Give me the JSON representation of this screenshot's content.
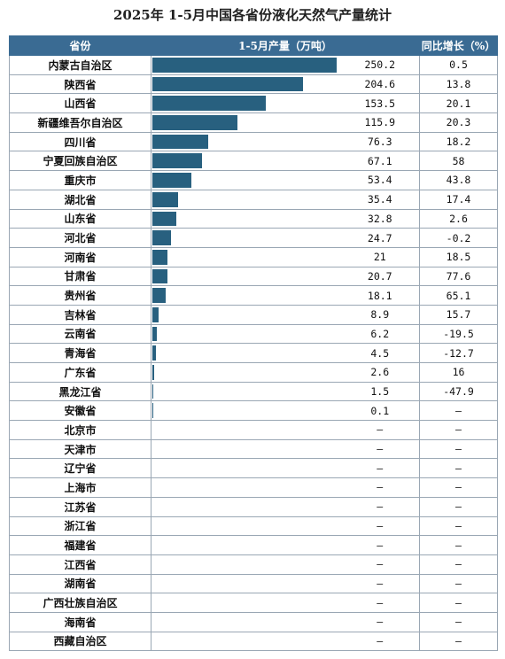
{
  "title": "2025年 1-5月中国各省份液化天然气产量统计",
  "headers": {
    "province": "省份",
    "production": "1-5月产量（万吨）",
    "growth": "同比增长（%）"
  },
  "colors": {
    "header_bg": "#3a6b93",
    "bar": "#28607f",
    "grid": "#9aa7b4"
  },
  "chart_data": {
    "type": "table",
    "bar_max": 250.2,
    "rows": [
      {
        "province": "内蒙古自治区",
        "production": 250.2,
        "production_label": "250.2",
        "growth": "0.5"
      },
      {
        "province": "陕西省",
        "production": 204.6,
        "production_label": "204.6",
        "growth": "13.8"
      },
      {
        "province": "山西省",
        "production": 153.5,
        "production_label": "153.5",
        "growth": "20.1"
      },
      {
        "province": "新疆维吾尔自治区",
        "production": 115.9,
        "production_label": "115.9",
        "growth": "20.3"
      },
      {
        "province": "四川省",
        "production": 76.3,
        "production_label": "76.3",
        "growth": "18.2"
      },
      {
        "province": "宁夏回族自治区",
        "production": 67.1,
        "production_label": "67.1",
        "growth": "58"
      },
      {
        "province": "重庆市",
        "production": 53.4,
        "production_label": "53.4",
        "growth": "43.8"
      },
      {
        "province": "湖北省",
        "production": 35.4,
        "production_label": "35.4",
        "growth": "17.4"
      },
      {
        "province": "山东省",
        "production": 32.8,
        "production_label": "32.8",
        "growth": "2.6"
      },
      {
        "province": "河北省",
        "production": 24.7,
        "production_label": "24.7",
        "growth": "-0.2"
      },
      {
        "province": "河南省",
        "production": 21,
        "production_label": "21",
        "growth": "18.5"
      },
      {
        "province": "甘肃省",
        "production": 20.7,
        "production_label": "20.7",
        "growth": "77.6"
      },
      {
        "province": "贵州省",
        "production": 18.1,
        "production_label": "18.1",
        "growth": "65.1"
      },
      {
        "province": "吉林省",
        "production": 8.9,
        "production_label": "8.9",
        "growth": "15.7"
      },
      {
        "province": "云南省",
        "production": 6.2,
        "production_label": "6.2",
        "growth": "-19.5"
      },
      {
        "province": "青海省",
        "production": 4.5,
        "production_label": "4.5",
        "growth": "-12.7"
      },
      {
        "province": "广东省",
        "production": 2.6,
        "production_label": "2.6",
        "growth": "16"
      },
      {
        "province": "黑龙江省",
        "production": 1.5,
        "production_label": "1.5",
        "growth": "-47.9"
      },
      {
        "province": "安徽省",
        "production": 0.1,
        "production_label": "0.1",
        "growth": "–"
      },
      {
        "province": "北京市",
        "production": 0,
        "production_label": "–",
        "growth": "–"
      },
      {
        "province": "天津市",
        "production": 0,
        "production_label": "–",
        "growth": "–"
      },
      {
        "province": "辽宁省",
        "production": 0,
        "production_label": "–",
        "growth": "–"
      },
      {
        "province": "上海市",
        "production": 0,
        "production_label": "–",
        "growth": "–"
      },
      {
        "province": "江苏省",
        "production": 0,
        "production_label": "–",
        "growth": "–"
      },
      {
        "province": "浙江省",
        "production": 0,
        "production_label": "–",
        "growth": "–"
      },
      {
        "province": "福建省",
        "production": 0,
        "production_label": "–",
        "growth": "–"
      },
      {
        "province": "江西省",
        "production": 0,
        "production_label": "–",
        "growth": "–"
      },
      {
        "province": "湖南省",
        "production": 0,
        "production_label": "–",
        "growth": "–"
      },
      {
        "province": "广西壮族自治区",
        "production": 0,
        "production_label": "–",
        "growth": "–"
      },
      {
        "province": "海南省",
        "production": 0,
        "production_label": "–",
        "growth": "–"
      },
      {
        "province": "西藏自治区",
        "production": 0,
        "production_label": "–",
        "growth": "–"
      }
    ]
  }
}
